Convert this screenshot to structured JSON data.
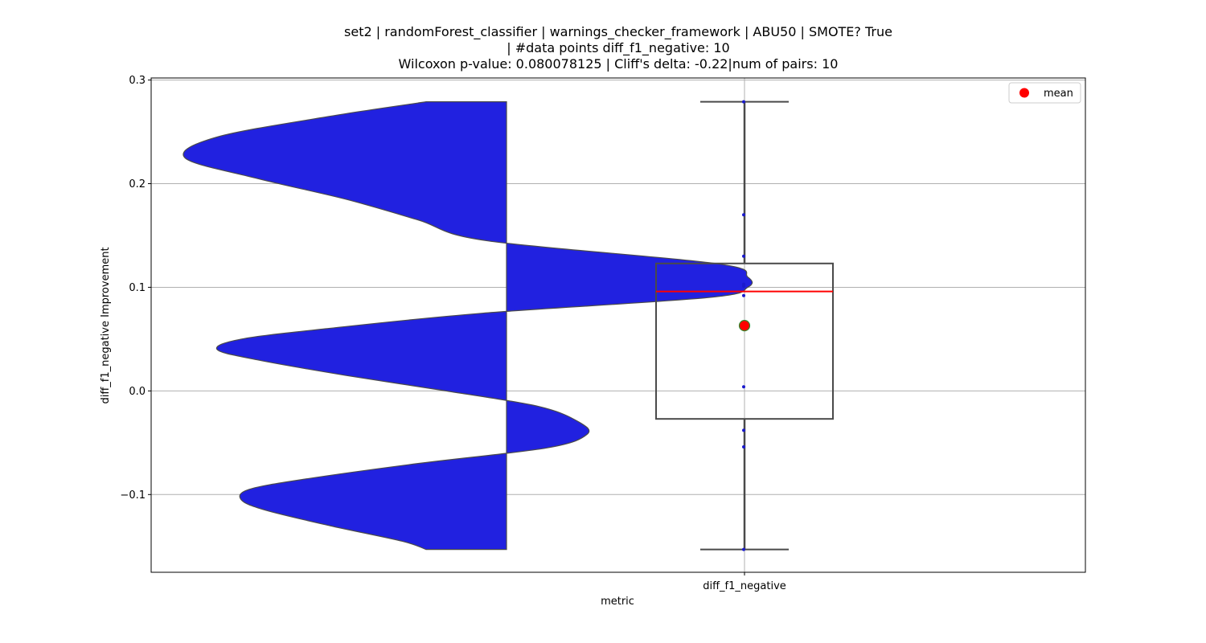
{
  "chart_data": {
    "type": "violin+box",
    "title_lines": [
      "set2 | randomForest_classifier | warnings_checker_framework | ABU50 | SMOTE? True",
      "| #data points diff_f1_negative: 10",
      "Wilcoxon p-value: 0.080078125 | Cliff's delta: -0.22|num of pairs: 10"
    ],
    "xlabel": "metric",
    "ylabel": "diff_f1_negative Improvement",
    "categories": [
      "diff_f1_negative"
    ],
    "ylim": [
      -0.175,
      0.302
    ],
    "yticks": [
      -0.1,
      0.0,
      0.1,
      0.2,
      0.3
    ],
    "ytick_labels": [
      "−0.1",
      "0.0",
      "0.1",
      "0.2",
      "0.3"
    ],
    "grid": true,
    "legend": {
      "label": "mean",
      "position": "top-right"
    },
    "colors": {
      "violin": "#2121e0",
      "median": "#ff0000",
      "mean": "#ff0000",
      "mean_edge": "#2e8b2e",
      "points": "#1a1acc",
      "box": "#4a4a4a",
      "grid": "#b0b0b0"
    },
    "points": [
      0.279,
      0.17,
      0.13,
      0.103,
      0.101,
      0.092,
      0.004,
      -0.038,
      -0.054,
      -0.153
    ],
    "box": {
      "whisker_low": -0.153,
      "q1": -0.027,
      "median": 0.096,
      "q3": 0.123,
      "whisker_high": 0.279
    },
    "mean": 0.063,
    "violin_density": [
      [
        0.279,
        0.2
      ],
      [
        0.265,
        0.44
      ],
      [
        0.245,
        0.72
      ],
      [
        0.225,
        0.8
      ],
      [
        0.205,
        0.62
      ],
      [
        0.185,
        0.4
      ],
      [
        0.165,
        0.22
      ],
      [
        0.145,
        0.05
      ],
      [
        0.123,
        -0.52
      ],
      [
        0.11,
        -0.6
      ],
      [
        0.1,
        -0.6
      ],
      [
        0.09,
        -0.5
      ],
      [
        0.075,
        0.06
      ],
      [
        0.06,
        0.45
      ],
      [
        0.05,
        0.66
      ],
      [
        0.04,
        0.72
      ],
      [
        0.03,
        0.62
      ],
      [
        0.015,
        0.4
      ],
      [
        0.0,
        0.15
      ],
      [
        -0.015,
        -0.08
      ],
      [
        -0.03,
        -0.18
      ],
      [
        -0.042,
        -0.2
      ],
      [
        -0.055,
        -0.1
      ],
      [
        -0.07,
        0.22
      ],
      [
        -0.085,
        0.5
      ],
      [
        -0.095,
        0.64
      ],
      [
        -0.105,
        0.66
      ],
      [
        -0.115,
        0.6
      ],
      [
        -0.13,
        0.44
      ],
      [
        -0.145,
        0.26
      ],
      [
        -0.153,
        0.2
      ]
    ]
  }
}
